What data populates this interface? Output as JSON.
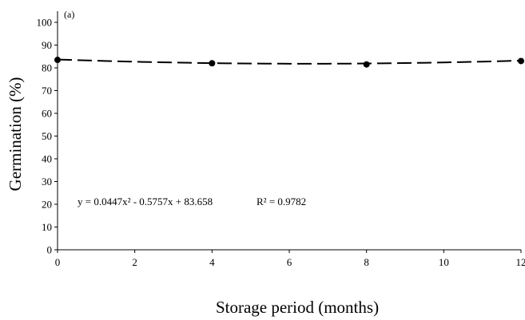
{
  "chart_data": {
    "type": "scatter",
    "panel_label": "(a)",
    "xlabel": "Storage period (months)",
    "ylabel": "Germination (%)",
    "xlim": [
      0,
      12
    ],
    "ylim": [
      0,
      100
    ],
    "x_ticks": [
      "0",
      "2",
      "4",
      "6",
      "8",
      "10",
      "12"
    ],
    "y_ticks": [
      "0",
      "10",
      "20",
      "30",
      "40",
      "50",
      "60",
      "70",
      "80",
      "90",
      "100"
    ],
    "points": {
      "x": [
        0,
        4,
        8,
        12
      ],
      "y": [
        83.5,
        82,
        81.5,
        83
      ]
    },
    "trendline": {
      "style": "dashed",
      "equation": "y = 0.0447x² - 0.5757x + 83.658",
      "r_squared": "R² = 0.9782",
      "coefficients": {
        "a": 0.0447,
        "b": -0.5757,
        "c": 83.658
      }
    },
    "colors": {
      "series": "#000000",
      "axis": "#000000"
    },
    "grid": false
  }
}
